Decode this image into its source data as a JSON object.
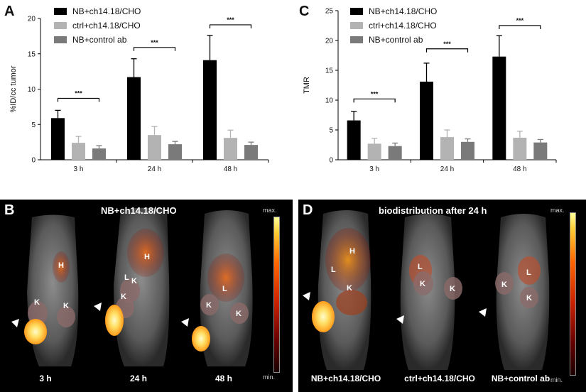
{
  "chart_data": [
    {
      "panel": "A",
      "type": "bar",
      "ylabel": "%ID/cc tumor",
      "ylim": [
        0,
        20
      ],
      "yticks": [
        0,
        5,
        10,
        15,
        20
      ],
      "categories": [
        "3 h",
        "24 h",
        "48 h"
      ],
      "series": [
        {
          "name": "NB+ch14.18/CHO",
          "color": "#000000",
          "values": [
            5.9,
            11.7,
            14.1
          ],
          "errors": [
            1.1,
            2.6,
            3.5
          ]
        },
        {
          "name": "ctrl+ch14.18/CHO",
          "color": "#b3b3b3",
          "values": [
            2.4,
            3.5,
            3.1
          ],
          "errors": [
            0.9,
            1.2,
            1.1
          ]
        },
        {
          "name": "NB+control ab",
          "color": "#7a7a7a",
          "values": [
            1.6,
            2.2,
            2.1
          ],
          "errors": [
            0.4,
            0.4,
            0.4
          ]
        }
      ],
      "significance": [
        {
          "category": 0,
          "label": "***",
          "y": 8.7
        },
        {
          "category": 1,
          "label": "***",
          "y": 15.9
        },
        {
          "category": 2,
          "label": "***",
          "y": 19.1
        }
      ]
    },
    {
      "panel": "C",
      "type": "bar",
      "ylabel": "TMR",
      "ylim": [
        0,
        25
      ],
      "yticks": [
        0,
        5,
        10,
        15,
        20,
        25
      ],
      "categories": [
        "3 h",
        "24 h",
        "48 h"
      ],
      "series": [
        {
          "name": "NB+ch14.18/CHO",
          "color": "#000000",
          "values": [
            6.6,
            13.1,
            17.3
          ],
          "errors": [
            1.5,
            3.1,
            3.5
          ]
        },
        {
          "name": "ctrl+ch14.18/CHO",
          "color": "#b3b3b3",
          "values": [
            2.7,
            3.8,
            3.7
          ],
          "errors": [
            0.9,
            1.2,
            1.1
          ]
        },
        {
          "name": "NB+control ab",
          "color": "#7a7a7a",
          "values": [
            2.3,
            3.0,
            2.9
          ],
          "errors": [
            0.5,
            0.5,
            0.5
          ]
        }
      ],
      "significance": [
        {
          "category": 0,
          "label": "***",
          "y": 10.2
        },
        {
          "category": 1,
          "label": "***",
          "y": 18.6
        },
        {
          "category": 2,
          "label": "***",
          "y": 22.5
        }
      ]
    }
  ],
  "panel_b": {
    "letter": "B",
    "title": "NB+ch14.18/CHO",
    "captions": [
      "3 h",
      "24 h",
      "48 h"
    ],
    "organ_labels": [
      [
        "H",
        "K",
        "K"
      ],
      [
        "H",
        "L",
        "K",
        "K"
      ],
      [
        "L",
        "K",
        "K"
      ]
    ],
    "scale": {
      "max": "max.",
      "min": "min."
    }
  },
  "panel_d": {
    "letter": "D",
    "title": "biodistribution after 24 h",
    "captions": [
      "NB+ch14.18/CHO",
      "ctrl+ch14.18/CHO",
      "NB+control ab"
    ],
    "organ_labels": [
      [
        "H",
        "L",
        "K"
      ],
      [
        "L",
        "K",
        "K"
      ],
      [
        "K",
        "L",
        "K"
      ]
    ],
    "scale": {
      "max": "max.",
      "min": "min."
    }
  },
  "colors": {
    "hotspot": "#ffe066",
    "uptake": "#e0501a",
    "tissue": "#9a9a9a"
  }
}
